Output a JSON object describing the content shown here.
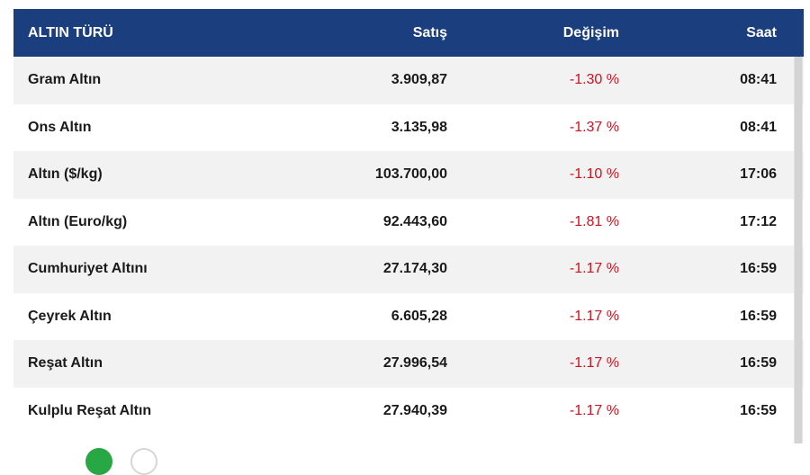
{
  "header": {
    "col_type": "ALTIN TÜRÜ",
    "col_sell": "Satış",
    "col_change": "Değişim",
    "col_time": "Saat"
  },
  "rows": [
    {
      "name": "Gram Altın",
      "sell": "3.909,87",
      "change": "-1.30 %",
      "time": "08:41"
    },
    {
      "name": "Ons Altın",
      "sell": "3.135,98",
      "change": "-1.37 %",
      "time": "08:41"
    },
    {
      "name": "Altın ($/kg)",
      "sell": "103.700,00",
      "change": "-1.10 %",
      "time": "17:06"
    },
    {
      "name": "Altın (Euro/kg)",
      "sell": "92.443,60",
      "change": "-1.81 %",
      "time": "17:12"
    },
    {
      "name": "Cumhuriyet Altını",
      "sell": "27.174,30",
      "change": "-1.17 %",
      "time": "16:59"
    },
    {
      "name": "Çeyrek Altın",
      "sell": "6.605,28",
      "change": "-1.17 %",
      "time": "16:59"
    },
    {
      "name": "Reşat Altın",
      "sell": "27.996,54",
      "change": "-1.17 %",
      "time": "16:59"
    },
    {
      "name": "Kulplu Reşat Altın",
      "sell": "27.940,39",
      "change": "-1.17 %",
      "time": "16:59"
    }
  ],
  "colors": {
    "header_bg": "#1b3e7e",
    "negative": "#d0101e",
    "active_dot": "#27a844"
  }
}
